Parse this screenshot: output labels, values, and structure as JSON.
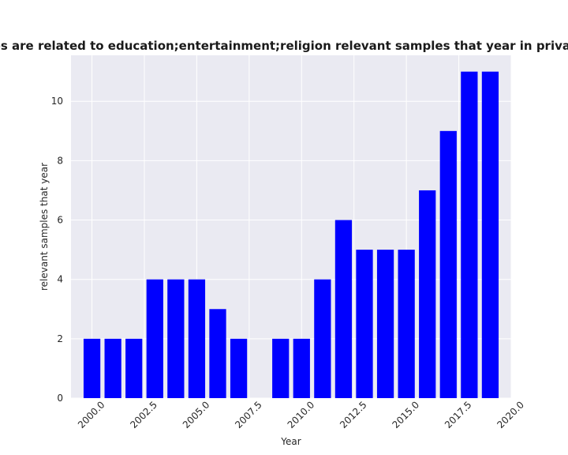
{
  "chart_data": {
    "type": "bar",
    "title": "Categories are related to education;entertainment;religion relevant samples that year in privacy policies",
    "xlabel": "Year",
    "ylabel": "relevant samples that year",
    "x": [
      2000,
      2001,
      2002,
      2003,
      2004,
      2005,
      2006,
      2007,
      2008,
      2009,
      2010,
      2011,
      2012,
      2013,
      2014,
      2015,
      2016,
      2017,
      2018,
      2019
    ],
    "values": [
      2,
      2,
      2,
      4,
      4,
      4,
      3,
      2,
      0,
      2,
      2,
      4,
      6,
      5,
      5,
      5,
      7,
      9,
      11,
      11
    ],
    "xlim": [
      1999.0,
      2020.0
    ],
    "ylim": [
      0,
      11.55
    ],
    "x_ticks": [
      "2000.0",
      "2002.5",
      "2005.0",
      "2007.5",
      "2010.0",
      "2012.5",
      "2015.0",
      "2017.5",
      "2020.0"
    ],
    "y_ticks": [
      "0",
      "2",
      "4",
      "6",
      "8",
      "10"
    ],
    "bar_color": "#0000ff",
    "grid": true,
    "x_tick_rotation_deg": 45,
    "plot_background": "#eaeaf2"
  }
}
